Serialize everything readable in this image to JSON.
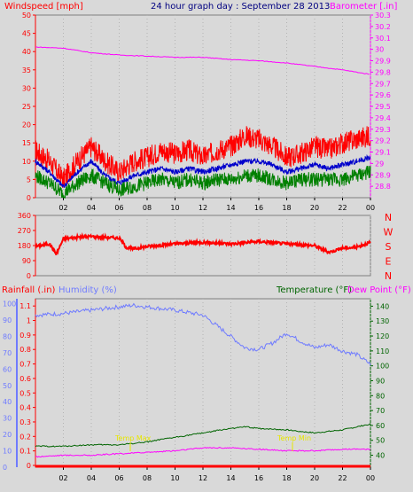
{
  "title": "24 hour graph day : September 28 2013",
  "colors": {
    "windspeed": "#ff0000",
    "windavg": "#0000cc",
    "windlow": "#008000",
    "barometer": "#ff00ff",
    "direction": "#ff0000",
    "rainfall": "#ff0000",
    "humidity": "#6f7bff",
    "temperature": "#006400",
    "dewpoint": "#ff00ff",
    "title": "#000080",
    "background": "#d9d9d9"
  },
  "chart_data": [
    {
      "type": "line",
      "panel": "wind",
      "labels": {
        "left": "Windspeed [mph]",
        "right": "Barometer [.in]"
      },
      "x_ticks": [
        "02",
        "04",
        "06",
        "08",
        "10",
        "12",
        "14",
        "16",
        "18",
        "20",
        "22",
        "00"
      ],
      "x_range": [
        0,
        24
      ],
      "y_left_ticks": [
        "0",
        "5",
        "10",
        "15",
        "20",
        "25",
        "30",
        "35",
        "40",
        "45",
        "50"
      ],
      "y_left_range": [
        0,
        50
      ],
      "y_right_ticks": [
        "28.8",
        "28.9",
        "29",
        "29.1",
        "29.2",
        "29.3",
        "29.4",
        "29.5",
        "29.6",
        "29.7",
        "29.8",
        "29.9",
        "30",
        "30.1",
        "30.2",
        "30.3"
      ],
      "y_right_range": [
        28.7,
        30.3
      ],
      "series": [
        {
          "key": "gust",
          "axis": "left",
          "x": [
            0,
            1,
            2,
            3,
            4,
            5,
            6,
            7,
            8,
            9,
            10,
            11,
            12,
            13,
            14,
            15,
            16,
            17,
            18,
            19,
            20,
            21,
            22,
            23,
            24
          ],
          "y": [
            13,
            10,
            5,
            10,
            14,
            10,
            7,
            10,
            11,
            13,
            12,
            13,
            11,
            13,
            14,
            17,
            16,
            14,
            11,
            12,
            14,
            13,
            15,
            16,
            17
          ]
        },
        {
          "key": "average",
          "axis": "left",
          "x": [
            0,
            1,
            2,
            3,
            4,
            5,
            6,
            7,
            8,
            9,
            10,
            11,
            12,
            13,
            14,
            15,
            16,
            17,
            18,
            19,
            20,
            21,
            22,
            23,
            24
          ],
          "y": [
            10,
            7,
            3,
            7,
            10,
            6,
            4,
            6,
            7,
            8,
            7,
            8,
            7,
            8,
            9,
            10,
            10,
            9,
            7,
            8,
            9,
            8,
            9,
            10,
            11
          ]
        },
        {
          "key": "low",
          "axis": "left",
          "x": [
            0,
            1,
            2,
            3,
            4,
            5,
            6,
            7,
            8,
            9,
            10,
            11,
            12,
            13,
            14,
            15,
            16,
            17,
            18,
            19,
            20,
            21,
            22,
            23,
            24
          ],
          "y": [
            6,
            4,
            1,
            4,
            6,
            4,
            2,
            3,
            4,
            5,
            4,
            5,
            4,
            5,
            5,
            6,
            6,
            5,
            4,
            5,
            5,
            5,
            5,
            6,
            7
          ]
        },
        {
          "key": "barometer",
          "axis": "right",
          "x": [
            0,
            2,
            4,
            6,
            8,
            10,
            12,
            14,
            16,
            18,
            20,
            22,
            24
          ],
          "y": [
            30.02,
            30.01,
            29.97,
            29.95,
            29.94,
            29.93,
            29.93,
            29.91,
            29.9,
            29.88,
            29.85,
            29.82,
            29.78
          ]
        }
      ]
    },
    {
      "type": "line",
      "panel": "direction",
      "labels": {
        "compass": [
          "N",
          "W",
          "S",
          "E",
          "N"
        ]
      },
      "y_ticks": [
        "360",
        "270",
        "180",
        "90",
        "0"
      ],
      "y_range": [
        0,
        360
      ],
      "x_range": [
        0,
        24
      ],
      "series": [
        {
          "key": "direction",
          "x": [
            0,
            1,
            1.5,
            2,
            3,
            4,
            5,
            6,
            6.5,
            7,
            8,
            10,
            12,
            14,
            16,
            18,
            20,
            21,
            22,
            23,
            24
          ],
          "y": [
            175,
            190,
            130,
            220,
            230,
            235,
            230,
            225,
            170,
            160,
            175,
            190,
            200,
            190,
            205,
            190,
            180,
            140,
            165,
            170,
            200
          ]
        }
      ]
    },
    {
      "type": "line",
      "panel": "rain-humidity-temperature",
      "labels": {
        "rainfall": "Rainfall (.in)",
        "humidity": "Humidity (%)",
        "temperature": "Temperature (°F)",
        "dewpoint": "Dew Point (°F)",
        "annotation_high": "Temp Max",
        "annotation_low": "Temp Min"
      },
      "x_ticks": [
        "02",
        "04",
        "06",
        "08",
        "10",
        "12",
        "14",
        "16",
        "18",
        "20",
        "22",
        "00"
      ],
      "x_range": [
        0,
        24
      ],
      "y_humidity_ticks": [
        "0",
        "10",
        "20",
        "30",
        "40",
        "50",
        "60",
        "70",
        "80",
        "90",
        "100"
      ],
      "y_humidity_range": [
        0,
        100
      ],
      "y_rain_ticks": [
        "0",
        "0.1",
        "0.2",
        "0.3",
        "0.4",
        "0.5",
        "0.6",
        "0.7",
        "0.8",
        "0.9",
        "1",
        "1.1"
      ],
      "y_rain_range": [
        0,
        1.1
      ],
      "y_temp_ticks": [
        "40",
        "50",
        "60",
        "70",
        "80",
        "90",
        "100",
        "110",
        "120",
        "130",
        "140"
      ],
      "y_temp_range": [
        32,
        145
      ],
      "series": [
        {
          "key": "humidity",
          "axis": "humidity",
          "x": [
            0,
            2,
            4,
            6,
            7,
            8,
            10,
            12,
            14,
            15,
            16,
            17,
            18,
            19,
            20,
            21,
            22,
            23,
            24
          ],
          "y": [
            93,
            94,
            96,
            98,
            99,
            98,
            96,
            93,
            80,
            73,
            72,
            76,
            82,
            77,
            73,
            75,
            71,
            69,
            63
          ]
        },
        {
          "key": "temperature",
          "axis": "temp",
          "x": [
            0,
            2,
            4,
            6,
            8,
            10,
            12,
            14,
            15,
            16,
            18,
            20,
            22,
            23,
            24
          ],
          "y": [
            46,
            46,
            47,
            47,
            49,
            52,
            55,
            58,
            59,
            58,
            57,
            55,
            57,
            59,
            61
          ]
        },
        {
          "key": "dewpoint",
          "axis": "temp",
          "x": [
            0,
            2,
            4,
            6,
            8,
            10,
            12,
            14,
            16,
            18,
            20,
            22,
            24
          ],
          "y": [
            39,
            40,
            40,
            41,
            42,
            43,
            45,
            45,
            44,
            43,
            43,
            44,
            44
          ]
        },
        {
          "key": "rainfall",
          "axis": "rain",
          "x": [
            0,
            24
          ],
          "y": [
            0,
            0
          ]
        }
      ]
    }
  ]
}
